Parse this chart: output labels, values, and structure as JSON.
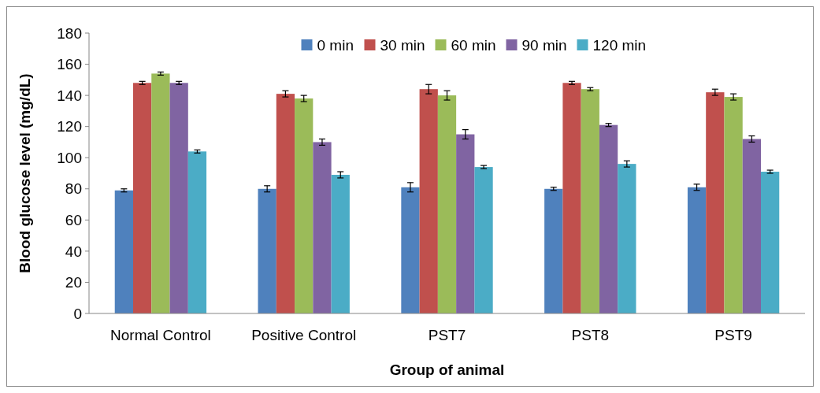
{
  "chart_data": {
    "type": "bar",
    "xlabel": "Group of animal",
    "ylabel": "Blood glucose level (mg/dL)",
    "categories": [
      "Normal Control",
      "Positive Control",
      "PST7",
      "PST8",
      "PST9"
    ],
    "ylim": [
      0,
      180
    ],
    "yticks": [
      0,
      20,
      40,
      60,
      80,
      100,
      120,
      140,
      160,
      180
    ],
    "grid": false,
    "legend": "top",
    "series": [
      {
        "name": "0 min",
        "color": "#4f81bd",
        "values": [
          79,
          80,
          81,
          80,
          81
        ],
        "errors": [
          1,
          2,
          3,
          1,
          2
        ]
      },
      {
        "name": "30 min",
        "color": "#c0504d",
        "values": [
          148,
          141,
          144,
          148,
          142
        ],
        "errors": [
          1,
          2,
          3,
          1,
          2
        ]
      },
      {
        "name": "60 min",
        "color": "#9bbb59",
        "values": [
          154,
          138,
          140,
          144,
          139
        ],
        "errors": [
          1,
          2,
          3,
          1,
          2
        ]
      },
      {
        "name": "90 min",
        "color": "#8064a2",
        "values": [
          148,
          110,
          115,
          121,
          112
        ],
        "errors": [
          1,
          2,
          3,
          1,
          2
        ]
      },
      {
        "name": "120 min",
        "color": "#4bacc6",
        "values": [
          104,
          89,
          94,
          96,
          91
        ],
        "errors": [
          1,
          2,
          1,
          2,
          1
        ]
      }
    ]
  }
}
